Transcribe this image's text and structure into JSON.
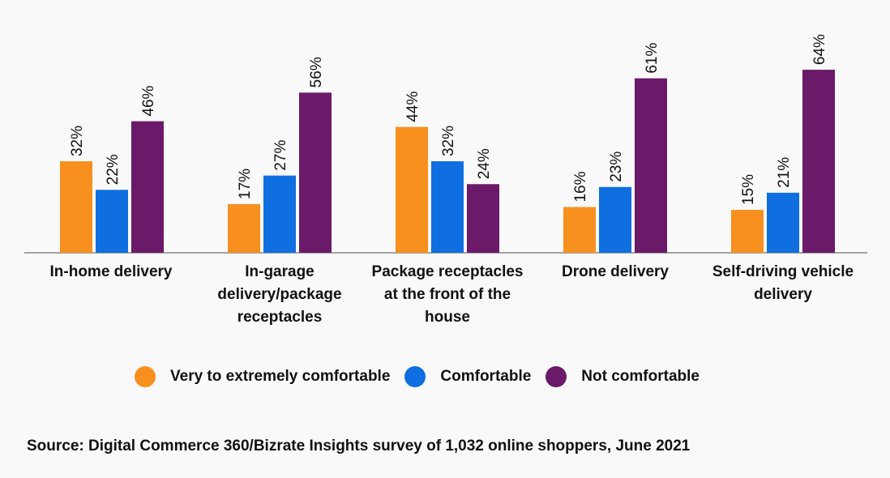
{
  "chart_data": {
    "type": "bar",
    "categories": [
      "In-home delivery",
      "In-garage delivery/package receptacles",
      "Package receptacles at the front of the house",
      "Drone delivery",
      "Self-driving vehicle delivery"
    ],
    "series": [
      {
        "name": "Very to extremely comfortable",
        "color": "#F7901E",
        "values": [
          32,
          17,
          44,
          16,
          15
        ]
      },
      {
        "name": "Comfortable",
        "color": "#0F6FE0",
        "values": [
          22,
          27,
          32,
          23,
          21
        ]
      },
      {
        "name": "Not comfortable",
        "color": "#6A1A68",
        "values": [
          46,
          56,
          24,
          61,
          64
        ]
      }
    ],
    "value_suffix": "%",
    "ylim": [
      0,
      70
    ],
    "grid": false,
    "legend": "bottom",
    "source": "Source: Digital Commerce 360/Bizrate Insights survey of 1,032 online shoppers, June 2021"
  }
}
